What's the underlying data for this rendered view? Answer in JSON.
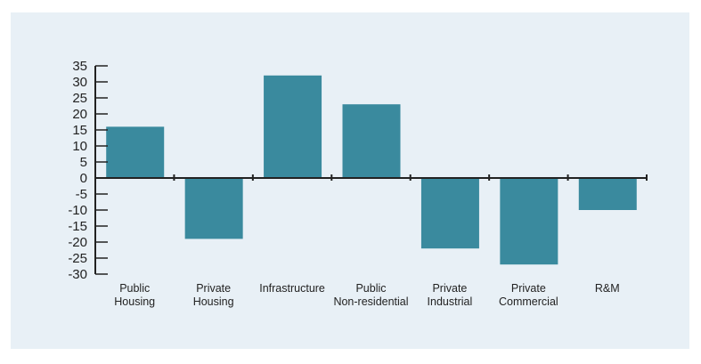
{
  "colors": {
    "background": "#e8f0f6",
    "bar": "#3a8a9e",
    "axis": "#222222"
  },
  "chart_data": {
    "type": "bar",
    "title": "",
    "xlabel": "",
    "ylabel": "",
    "categories": [
      [
        "Public",
        "Housing"
      ],
      [
        "Private",
        "Housing"
      ],
      [
        "Infrastructure"
      ],
      [
        "Public",
        "Non-residential"
      ],
      [
        "Private",
        "Industrial"
      ],
      [
        "Private",
        "Commercial"
      ],
      [
        "R&M"
      ]
    ],
    "values": [
      16,
      -19,
      32,
      23,
      -22,
      -27,
      -10
    ],
    "ylim": [
      -30,
      35
    ],
    "yticks": [
      35,
      30,
      25,
      20,
      15,
      10,
      5,
      0,
      -5,
      -10,
      -15,
      -20,
      -25,
      -30
    ],
    "grid": false,
    "legend": "none"
  }
}
